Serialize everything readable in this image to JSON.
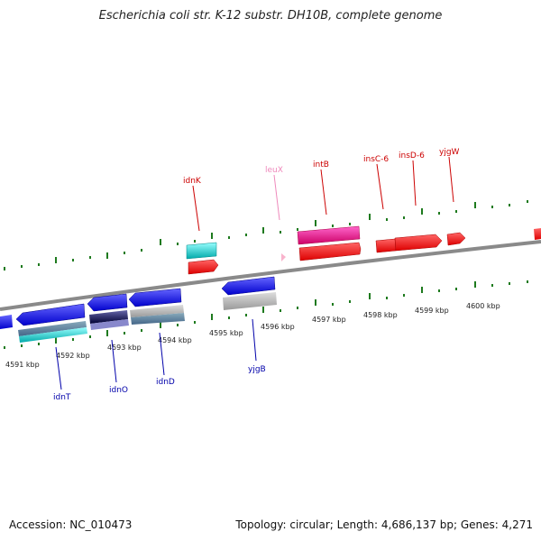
{
  "title": "Escherichia coli str. K-12 substr. DH10B, complete genome",
  "footer": {
    "accession": "Accession: NC_010473",
    "topology": "Topology: circular; Length: 4,686,137 bp; Genes: 4,271"
  },
  "colors": {
    "backbone": "#8a8a8a",
    "tick": "#1e7a1e",
    "forward_label": "#cc0000",
    "reverse_label": "#0000aa",
    "trna_label": "#ee88bb",
    "forward_gene": "#ff0000",
    "reverse_gene": "#0000ff"
  },
  "scale": {
    "unit": "kbp",
    "ticks": [
      {
        "label": "4591 kbp"
      },
      {
        "label": "4592 kbp"
      },
      {
        "label": "4593 kbp"
      },
      {
        "label": "4594 kbp"
      },
      {
        "label": "4595 kbp"
      },
      {
        "label": "4596 kbp"
      },
      {
        "label": "4597 kbp"
      },
      {
        "label": "4598 kbp"
      },
      {
        "label": "4599 kbp"
      },
      {
        "label": "4600 kbp"
      }
    ]
  },
  "genes": [
    {
      "name": "idnK",
      "strand": "forward",
      "color": "red"
    },
    {
      "name": "leuX",
      "strand": "forward",
      "color": "pink"
    },
    {
      "name": "intB",
      "strand": "forward",
      "color": "red"
    },
    {
      "name": "insC-6",
      "strand": "forward",
      "color": "red"
    },
    {
      "name": "insD-6",
      "strand": "forward",
      "color": "red"
    },
    {
      "name": "yjgW",
      "strand": "forward",
      "color": "red"
    },
    {
      "name": "idnT",
      "strand": "reverse",
      "color": "blue"
    },
    {
      "name": "idnO",
      "strand": "reverse",
      "color": "blue"
    },
    {
      "name": "idnD",
      "strand": "reverse",
      "color": "blue"
    },
    {
      "name": "yjgB",
      "strand": "reverse",
      "color": "blue"
    }
  ]
}
